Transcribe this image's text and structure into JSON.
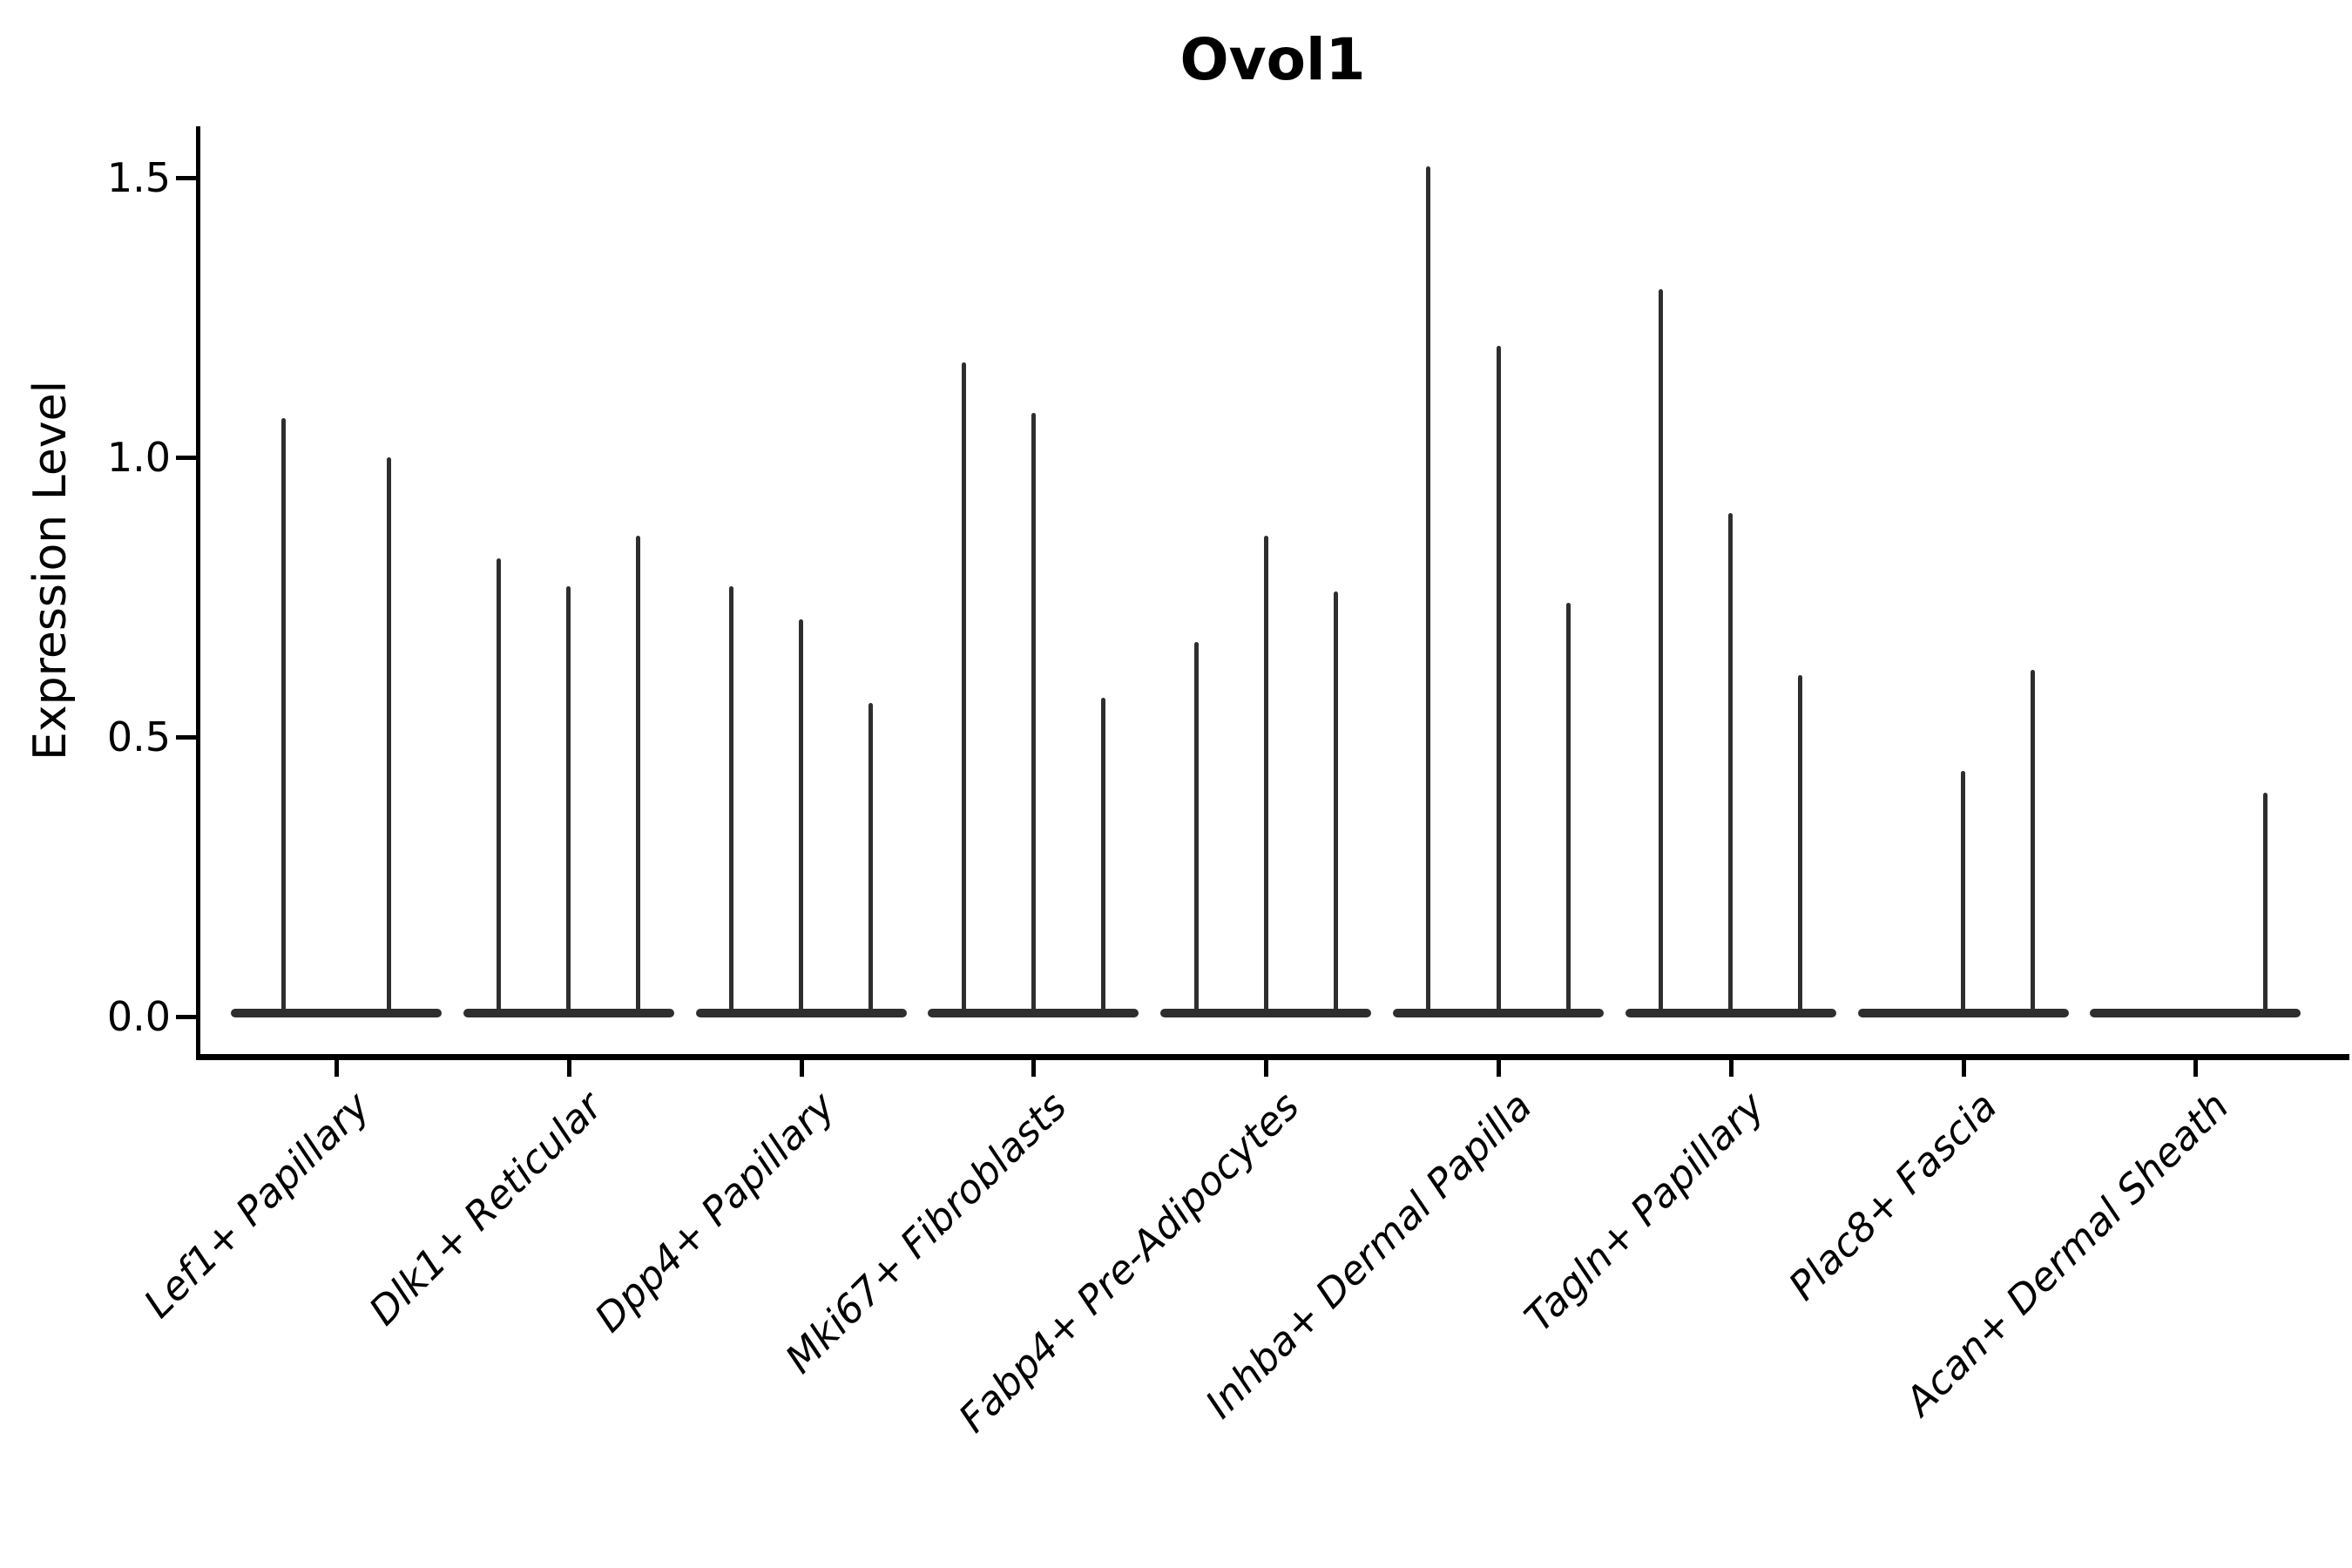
{
  "title": "Ovol1",
  "y_axis": {
    "label": "Expression Level",
    "tick_labels": [
      "0.0",
      "0.5",
      "1.0",
      "1.5"
    ]
  },
  "chart_data": {
    "type": "violin",
    "title": "Ovol1",
    "xlabel": "",
    "ylabel": "Expression Level",
    "yticks": [
      0.0,
      0.5,
      1.0,
      1.5
    ],
    "ylim": [
      -0.07,
      1.59
    ],
    "grid": false,
    "legend": false,
    "style_note": "violins collapsed to thin vertical spikes over flat baselines at 0",
    "categories": [
      "Lef1+ Papillary",
      "Dlk1+ Reticular",
      "Dpp4+ Papillary",
      "Mki67+ Fibroblasts",
      "Fabp4+ Pre-Adipocytes",
      "Inhba+ Dermal Papilla",
      "Tagln+ Papillary",
      "Plac8+ Fascia",
      "Acan+ Dermal Sheath"
    ],
    "groups": [
      {
        "label": "Lef1+ Papillary",
        "violins": [
          {
            "pos": -0.225,
            "peak": 1.07
          },
          {
            "pos": 0.225,
            "peak": 1.0
          }
        ]
      },
      {
        "label": "Dlk1+ Reticular",
        "violins": [
          {
            "pos": -0.3,
            "peak": 0.82
          },
          {
            "pos": 0.0,
            "peak": 0.77
          },
          {
            "pos": 0.3,
            "peak": 0.86
          }
        ]
      },
      {
        "label": "Dpp4+ Papillary",
        "violins": [
          {
            "pos": -0.3,
            "peak": 0.77
          },
          {
            "pos": 0.0,
            "peak": 0.71
          },
          {
            "pos": 0.3,
            "peak": 0.56
          }
        ]
      },
      {
        "label": "Mki67+ Fibroblasts",
        "violins": [
          {
            "pos": -0.3,
            "peak": 1.17
          },
          {
            "pos": 0.0,
            "peak": 1.08
          },
          {
            "pos": 0.3,
            "peak": 0.57
          }
        ]
      },
      {
        "label": "Fabp4+ Pre-Adipocytes",
        "violins": [
          {
            "pos": -0.3,
            "peak": 0.67
          },
          {
            "pos": 0.0,
            "peak": 0.86
          },
          {
            "pos": 0.3,
            "peak": 0.76
          }
        ]
      },
      {
        "label": "Inhba+ Dermal Papilla",
        "violins": [
          {
            "pos": -0.3,
            "peak": 1.52
          },
          {
            "pos": 0.0,
            "peak": 1.2
          },
          {
            "pos": 0.3,
            "peak": 0.74
          }
        ]
      },
      {
        "label": "Tagln+ Papillary",
        "violins": [
          {
            "pos": -0.3,
            "peak": 1.3
          },
          {
            "pos": 0.0,
            "peak": 0.9
          },
          {
            "pos": 0.3,
            "peak": 0.61
          }
        ]
      },
      {
        "label": "Plac8+ Fascia",
        "violins": [
          {
            "pos": -0.3,
            "peak": 0.0
          },
          {
            "pos": 0.0,
            "peak": 0.44
          },
          {
            "pos": 0.3,
            "peak": 0.62
          }
        ]
      },
      {
        "label": "Acan+ Dermal Sheath",
        "violins": [
          {
            "pos": -0.3,
            "peak": 0.0
          },
          {
            "pos": 0.0,
            "peak": 0.0
          },
          {
            "pos": 0.3,
            "peak": 0.4
          }
        ]
      }
    ],
    "colors": {
      "mark": "#2e2e2e",
      "text": "#000000",
      "background": "#ffffff"
    }
  }
}
